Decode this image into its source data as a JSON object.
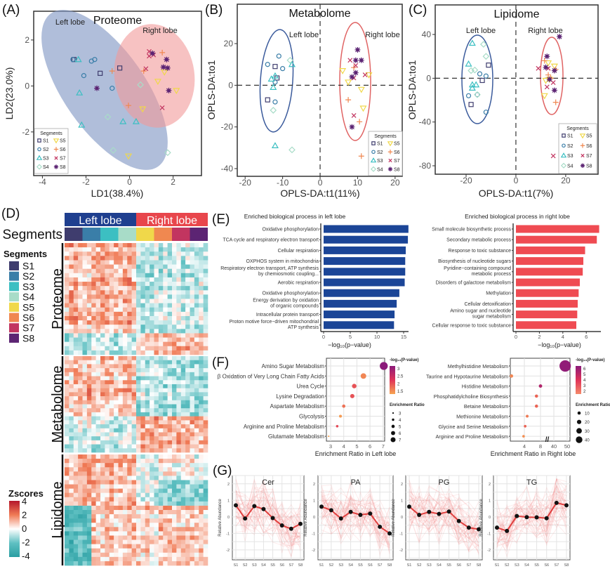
{
  "panel_labels": [
    "(A)",
    "(B)",
    "(C)",
    "(D)",
    "(E)",
    "(F)",
    "(G)"
  ],
  "segments": [
    {
      "name": "S1",
      "color": "#3f3d6e",
      "marker": "square"
    },
    {
      "name": "S2",
      "color": "#3a7ea8",
      "marker": "circle"
    },
    {
      "name": "S3",
      "color": "#3cbfc2",
      "marker": "triangle"
    },
    {
      "name": "S4",
      "color": "#a8dcc8",
      "marker": "diamond"
    },
    {
      "name": "S5",
      "color": "#f0d84a",
      "marker": "triangle-down"
    },
    {
      "name": "S6",
      "color": "#f08850",
      "marker": "plus"
    },
    {
      "name": "S7",
      "color": "#c23560",
      "marker": "x"
    },
    {
      "name": "S8",
      "color": "#5c2473",
      "marker": "asterisk"
    }
  ],
  "chart_data": [
    {
      "type": "scatter",
      "title": "Proteome",
      "xlabel": "LD1(38.4%)",
      "ylabel": "LD2(23.0%)",
      "xlim": [
        -4.4,
        3.3
      ],
      "ylim": [
        -3.9,
        3.25
      ],
      "x_ticks": [
        -4,
        -2,
        0,
        2
      ],
      "y_ticks": [
        -2,
        0,
        2
      ],
      "group_labels": [
        "Left lobe",
        "Right lobe"
      ],
      "legend": {
        "title": "Segments",
        "position": "bottom-left"
      },
      "series": [
        {
          "name": "S1",
          "points": [
            [
              -2.55,
              1.15
            ],
            [
              -1.35,
              0.55
            ],
            [
              -0.45,
              0.78
            ]
          ]
        },
        {
          "name": "S2",
          "points": [
            [
              -2.6,
              1.15
            ],
            [
              -2.1,
              0.45
            ],
            [
              -1.75,
              1.08
            ],
            [
              -1.6,
              1.15
            ],
            [
              -0.8,
              -0.1
            ]
          ]
        },
        {
          "name": "S3",
          "points": [
            [
              -2.35,
              1.15
            ],
            [
              -2.3,
              -0.3
            ],
            [
              -2.2,
              -1.7
            ],
            [
              -0.3,
              -1.55
            ],
            [
              0.3,
              -1.55
            ]
          ]
        },
        {
          "name": "S4",
          "points": [
            [
              0.5,
              0.05
            ],
            [
              -1.0,
              -1.35
            ],
            [
              -0.75,
              -2.8
            ],
            [
              1.75,
              -2.9
            ]
          ]
        },
        {
          "name": "S5",
          "points": [
            [
              1.6,
              0.6
            ],
            [
              1.3,
              0.2
            ],
            [
              2.15,
              -0.2
            ],
            [
              0.6,
              -1.0
            ],
            [
              -0.05,
              -3.05
            ]
          ]
        },
        {
          "name": "S6",
          "points": [
            [
              -0.8,
              0.65
            ],
            [
              0.65,
              0.65
            ],
            [
              1.5,
              1.45
            ],
            [
              -0.05,
              -0.85
            ]
          ]
        },
        {
          "name": "S7",
          "points": [
            [
              0.9,
              1.5
            ],
            [
              0.9,
              1.3
            ],
            [
              1.1,
              1.35
            ],
            [
              0.75,
              0.75
            ],
            [
              1.5,
              -0.95
            ]
          ]
        },
        {
          "name": "S8",
          "points": [
            [
              1.05,
              1.42
            ],
            [
              1.7,
              1.15
            ],
            [
              1.55,
              0.82
            ],
            [
              1.75,
              0.78
            ],
            [
              1.8,
              -0.2
            ],
            [
              -1.5,
              -0.1
            ]
          ]
        }
      ]
    },
    {
      "type": "scatter",
      "title": "Metabolome",
      "xlabel": "OPLS-DA:t1(11%)",
      "ylabel": "OPLS-DA:to1",
      "xlim": [
        -22.1,
        21.9
      ],
      "ylim": [
        -43.7,
        38.9
      ],
      "x_ticks": [
        -20,
        -10,
        0,
        10,
        20
      ],
      "y_ticks": [
        -40,
        -20,
        0,
        20
      ],
      "group_labels": [
        "Left lobe",
        "Right lobe"
      ],
      "legend": {
        "title": "Segments",
        "position": "bottom-right"
      },
      "series": [
        {
          "name": "S1",
          "points": [
            [
              -12,
              9
            ],
            [
              -11.5,
              3.5
            ],
            [
              -14,
              -7
            ]
          ]
        },
        {
          "name": "S2",
          "points": [
            [
              -14,
              10
            ],
            [
              -11,
              14
            ],
            [
              -10,
              8
            ],
            [
              -12,
              1.5
            ],
            [
              -12,
              -8
            ]
          ]
        },
        {
          "name": "S3",
          "points": [
            [
              -13,
              3
            ],
            [
              -12,
              4.5
            ],
            [
              -12.5,
              -1
            ],
            [
              -7.5,
              10
            ],
            [
              -12,
              -29
            ]
          ]
        },
        {
          "name": "S4",
          "points": [
            [
              -8,
              12
            ],
            [
              -12.5,
              -12
            ],
            [
              -7.5,
              -31
            ]
          ]
        },
        {
          "name": "S5",
          "points": [
            [
              6,
              7
            ],
            [
              7.5,
              1.5
            ],
            [
              11,
              -2
            ],
            [
              11.5,
              -11
            ],
            [
              13,
              5
            ]
          ]
        },
        {
          "name": "S6",
          "points": [
            [
              9,
              8.5
            ],
            [
              7.5,
              -7
            ],
            [
              10.5,
              -17.5
            ],
            [
              11,
              -34
            ]
          ]
        },
        {
          "name": "S7",
          "points": [
            [
              8,
              12
            ],
            [
              9.5,
              9.5
            ],
            [
              9,
              3.5
            ],
            [
              12,
              5
            ],
            [
              9,
              -14.5
            ]
          ]
        },
        {
          "name": "S8",
          "points": [
            [
              10,
              17
            ],
            [
              9.5,
              12
            ],
            [
              11,
              12
            ],
            [
              8.5,
              4
            ],
            [
              9.5,
              6
            ],
            [
              8.5,
              -20
            ]
          ]
        }
      ]
    },
    {
      "type": "scatter",
      "title": "Lipidome",
      "xlabel": "OPLS-DA:t1(7%)",
      "ylabel": "OPLS-DA:to1",
      "xlim": [
        -32.4,
        33
      ],
      "ylim": [
        -87.7,
        67
      ],
      "x_ticks": [
        -20,
        0,
        20
      ],
      "y_ticks": [
        -80,
        -40,
        0,
        40
      ],
      "group_labels": [
        "Left lobe",
        "Right lobe"
      ],
      "legend": {
        "title": "Segments",
        "position": "bottom-right"
      },
      "series": [
        {
          "name": "S1",
          "points": [
            [
              -11,
              12
            ],
            [
              -13.5,
              -2
            ],
            [
              -18,
              -24
            ]
          ]
        },
        {
          "name": "S2",
          "points": [
            [
              -14.5,
              4
            ],
            [
              -12,
              2
            ],
            [
              -19,
              -16
            ],
            [
              -15.5,
              -15
            ],
            [
              -12,
              -31
            ]
          ]
        },
        {
          "name": "S3",
          "points": [
            [
              -17.5,
              32
            ],
            [
              -19,
              13
            ],
            [
              -17.5,
              -6
            ],
            [
              -16,
              -6
            ],
            [
              -17.5,
              -9
            ]
          ]
        },
        {
          "name": "S4",
          "points": [
            [
              -13,
              31
            ],
            [
              -12,
              20
            ],
            [
              -18,
              7
            ],
            [
              -16.5,
              7.5
            ],
            [
              -15.5,
              -15
            ]
          ]
        },
        {
          "name": "S5",
          "points": [
            [
              13,
              14
            ],
            [
              15.5,
              11
            ],
            [
              12,
              -2
            ],
            [
              11.5,
              -16
            ],
            [
              13.5,
              -1
            ]
          ]
        },
        {
          "name": "S6",
          "points": [
            [
              11.5,
              16
            ],
            [
              16,
              8
            ],
            [
              13,
              3
            ],
            [
              16,
              -22
            ],
            [
              14,
              0
            ]
          ]
        },
        {
          "name": "S7",
          "points": [
            [
              9,
              9
            ],
            [
              13,
              9
            ],
            [
              15,
              -4
            ],
            [
              12.5,
              -8
            ],
            [
              15,
              -71
            ]
          ]
        },
        {
          "name": "S8",
          "points": [
            [
              17.5,
              38
            ],
            [
              12.5,
              20
            ],
            [
              12,
              10
            ],
            [
              15.5,
              7
            ],
            [
              15.5,
              -11
            ],
            [
              13.5,
              -1
            ]
          ]
        }
      ]
    },
    {
      "type": "heatmap",
      "lobes": [
        "Left lobe",
        "Right lobe"
      ],
      "lobe_colors": [
        "#1f3f8f",
        "#e8464c"
      ],
      "segment_bar_label": "Segments",
      "blocks": [
        "Proteome",
        "Metabolome",
        "Lipidome"
      ],
      "legend_title": "Segments",
      "zscore_title": "Zscores",
      "zscore_ticks": [
        4,
        2,
        0,
        -2,
        -4
      ],
      "zscore_range": [
        -4,
        4
      ],
      "colors": {
        "low": "#2a9ea2",
        "mid": "#ffffff",
        "high": "#b5172b"
      }
    },
    {
      "type": "bar",
      "orientation": "horizontal",
      "title": "Enriched biological process in left lobe",
      "xlabel": "−log₁₀(p−value)",
      "color": "#1b4597",
      "x_ticks": [
        0,
        5,
        10,
        15
      ],
      "labels": [
        [
          "Oxidative phosphorylation"
        ],
        [
          "TCA cycle and respiratory electron transport"
        ],
        [
          "Cellular respiration"
        ],
        [
          "OXPHOS system in mitochondria"
        ],
        [
          "Respiratory electron transport, ATP synthesis",
          "by chemiosmotic coupling..."
        ],
        [
          "Aerobic respiration"
        ],
        [
          "Oxidative phosphorylation"
        ],
        [
          "Energy derivation by oxidation",
          "of organic compounds"
        ],
        [
          "Intracellular protein transport"
        ],
        [
          "Proton motive force−driven mitochondrial",
          "ATP synthesis"
        ]
      ],
      "values": [
        15.9,
        15.8,
        15.4,
        15.3,
        15.3,
        15.2,
        14.2,
        13.7,
        13.3,
        13.2
      ]
    },
    {
      "type": "bar",
      "orientation": "horizontal",
      "title": "Enriched biological process in right lobe",
      "xlabel": "−log₁₀(p−value)",
      "color": "#ef4b52",
      "x_ticks": [
        0,
        2,
        4,
        6
      ],
      "labels": [
        [
          "Small molecule biosynthetic process"
        ],
        [
          "Secondary metabolic process"
        ],
        [
          "Response to toxic substance"
        ],
        [
          "Biosynthesis of nucleotide sugars"
        ],
        [
          "Pyridine−containing compound",
          "metabolic process"
        ],
        [
          "Disorders of galactose metabolism"
        ],
        [
          "Methylation"
        ],
        [
          "Cellular detoxification"
        ],
        [
          "Amino sugar and nucleotide",
          "sugar metabolism"
        ],
        [
          "Cellular response to toxic substance"
        ]
      ],
      "values": [
        7.1,
        6.9,
        5.9,
        5.75,
        5.7,
        5.45,
        5.35,
        5.27,
        5.23,
        5.15
      ]
    },
    {
      "type": "scatter",
      "subtype": "bubble",
      "xlabel": "Enrichment Ratio in Left lobe",
      "x_ticks": [
        3,
        4,
        5,
        6,
        7
      ],
      "xlim": [
        2.68,
        7.1
      ],
      "labels": [
        "Amino Sugar Metabolism",
        "β Oxidation of Very Long Chain Fatty Acids",
        "Urea Cycle",
        "Lysine Degradation",
        "Aspartate Metabolism",
        "Glycolysis",
        "Arginine and Proline Metabolism",
        "Glutamate Metabolism"
      ],
      "enrichment_ratio": [
        7.05,
        5.5,
        4.8,
        4.65,
        4.0,
        3.75,
        3.5,
        2.85
      ],
      "neg_log10_p": [
        3.3,
        1.4,
        1.9,
        1.9,
        1.6,
        1.2,
        2.0,
        1.1
      ],
      "color_legend": {
        "title": "-log₁₀(P-value)",
        "ticks": [
          3.0,
          2.5,
          2.0,
          1.5
        ],
        "range": [
          1.1,
          3.3
        ]
      },
      "size_legend": {
        "title": "Enrichment Ratio",
        "ticks": [
          3,
          4,
          5,
          6,
          7
        ]
      }
    },
    {
      "type": "scatter",
      "subtype": "bubble",
      "xlabel": "Enrichment Ratio in Right lobe",
      "x_ticks": [
        4,
        8,
        40,
        50
      ],
      "axis_break": [
        8,
        40
      ],
      "labels": [
        "Methylhistidine Metabolism",
        "Taurine and Hypotaurine Metabolism",
        "Histidine Metabolism",
        "Phosphatidylcholine Biosynthesis",
        "Betaine Metabolism",
        "Methionine Metabolism",
        "Glycine and Serine Metabolism",
        "Arginine and Proline Metabolism"
      ],
      "enrichment_ratio": [
        48.5,
        8.2,
        8.0,
        7.0,
        7.0,
        4.7,
        4.2,
        3.8
      ],
      "neg_log10_p": [
        6.6,
        2.2,
        5.6,
        3.0,
        3.0,
        2.5,
        3.0,
        2.0
      ],
      "color_legend": {
        "title": "-log₁₀(P-value)",
        "ticks": [
          6,
          5,
          4,
          3,
          2
        ],
        "range": [
          1.5,
          6.8
        ]
      },
      "size_legend": {
        "title": "Enrichment Ratio",
        "ticks": [
          10,
          20,
          30,
          40
        ]
      }
    },
    {
      "type": "line",
      "title": "Cer",
      "ylabel": "Relative Abundance",
      "categories": [
        "S1",
        "S2",
        "S3",
        "S4",
        "S5",
        "S6",
        "S7",
        "S8"
      ],
      "ylim": [
        -2.6,
        2.5
      ],
      "y_ticks": [
        2,
        1,
        0,
        -1,
        -2
      ],
      "values": [
        0.7,
        -0.1,
        0.65,
        0.47,
        -0.07,
        -0.52,
        -0.72,
        -0.42
      ]
    },
    {
      "type": "line",
      "title": "PA",
      "ylabel": "Relative Abundance",
      "categories": [
        "S1",
        "S2",
        "S3",
        "S4",
        "S5",
        "S6",
        "S7",
        "S8"
      ],
      "ylim": [
        -2.6,
        2.5
      ],
      "y_ticks": [
        2,
        1,
        0,
        -1,
        -2
      ],
      "values": [
        0.62,
        0.4,
        -0.1,
        0.3,
        0.12,
        0.2,
        -0.6,
        -1.0
      ]
    },
    {
      "type": "line",
      "title": "PG",
      "ylabel": "Relative Abundance",
      "categories": [
        "S1",
        "S2",
        "S3",
        "S4",
        "S5",
        "S6",
        "S7",
        "S8"
      ],
      "ylim": [
        -2.6,
        2.5
      ],
      "y_ticks": [
        2,
        1,
        0,
        -1,
        -2
      ],
      "values": [
        0.62,
        0.12,
        0.3,
        0.18,
        0.32,
        -0.25,
        -0.65,
        -0.75
      ]
    },
    {
      "type": "line",
      "title": "TG",
      "ylabel": "Relative Abundance",
      "categories": [
        "S1",
        "S2",
        "S3",
        "S4",
        "S5",
        "S6",
        "S7",
        "S8"
      ],
      "ylim": [
        -2.6,
        2.5
      ],
      "y_ticks": [
        2,
        1,
        0,
        -1,
        -2
      ],
      "values": [
        -0.65,
        -0.85,
        0.05,
        -0.02,
        -0.03,
        -0.08,
        0.85,
        0.7
      ]
    }
  ]
}
